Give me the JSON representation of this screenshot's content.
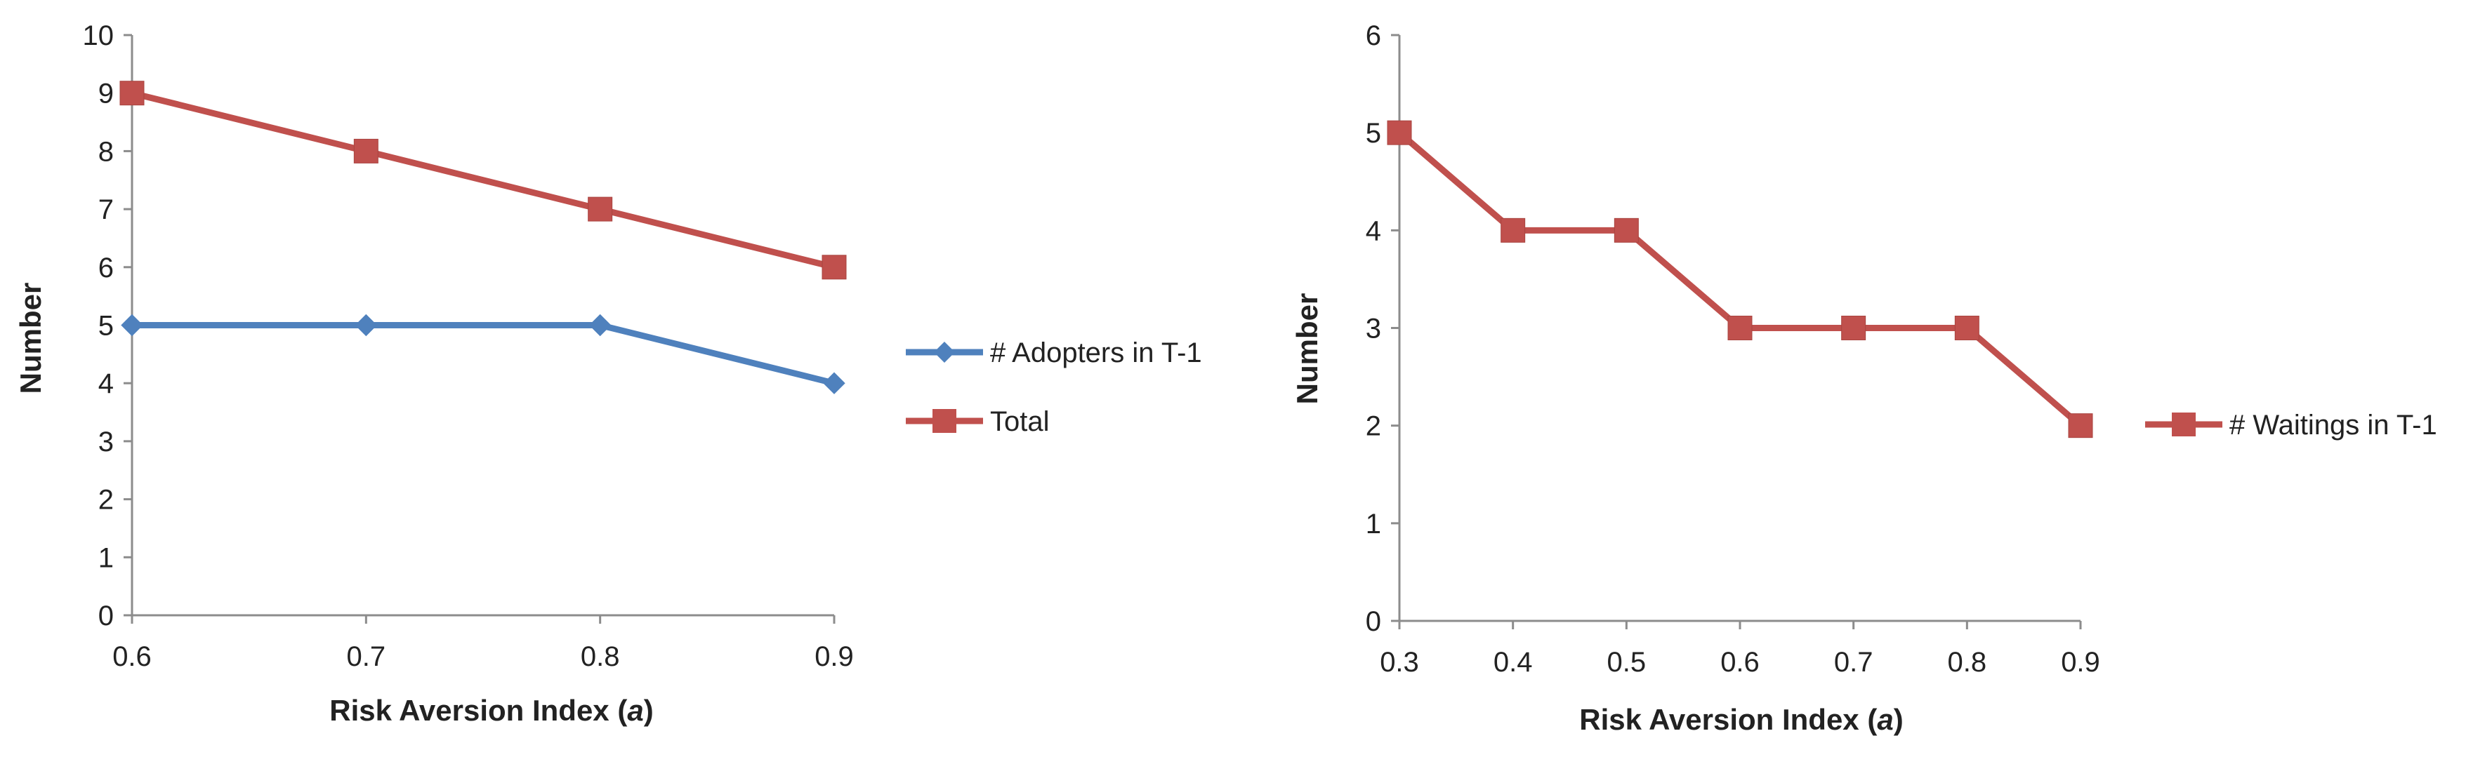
{
  "colors": {
    "blue": "#4F81BD",
    "red": "#C0504D",
    "axis": "#8C8C8C"
  },
  "chart_data": [
    {
      "type": "line",
      "title": "",
      "xlabel": "Risk Aversion Index",
      "xlabel_symbol": "a",
      "ylabel": "Number",
      "categories": [
        "0.6",
        "0.7",
        "0.8",
        "0.9"
      ],
      "ylim": [
        0,
        10
      ],
      "yticks": [
        "0",
        "1",
        "2",
        "3",
        "4",
        "5",
        "6",
        "7",
        "8",
        "9",
        "10"
      ],
      "legend_position": "right",
      "series": [
        {
          "name": "# Adopters in T-1",
          "values": [
            5,
            5,
            5,
            4
          ],
          "color": "#4F81BD",
          "marker": "diamond"
        },
        {
          "name": "Total",
          "values": [
            9,
            8,
            7,
            6
          ],
          "color": "#C0504D",
          "marker": "square"
        }
      ]
    },
    {
      "type": "line",
      "title": "",
      "xlabel": "Risk Aversion Index",
      "xlabel_symbol": "a",
      "ylabel": "Number",
      "categories": [
        "0.3",
        "0.4",
        "0.5",
        "0.6",
        "0.7",
        "0.8",
        "0.9"
      ],
      "ylim": [
        0,
        6
      ],
      "yticks": [
        "0",
        "1",
        "2",
        "3",
        "4",
        "5",
        "6"
      ],
      "legend_position": "right",
      "series": [
        {
          "name": "# Waitings in T-1",
          "values": [
            5,
            4,
            4,
            3,
            3,
            3,
            2
          ],
          "color": "#C0504D",
          "marker": "square"
        }
      ]
    }
  ]
}
